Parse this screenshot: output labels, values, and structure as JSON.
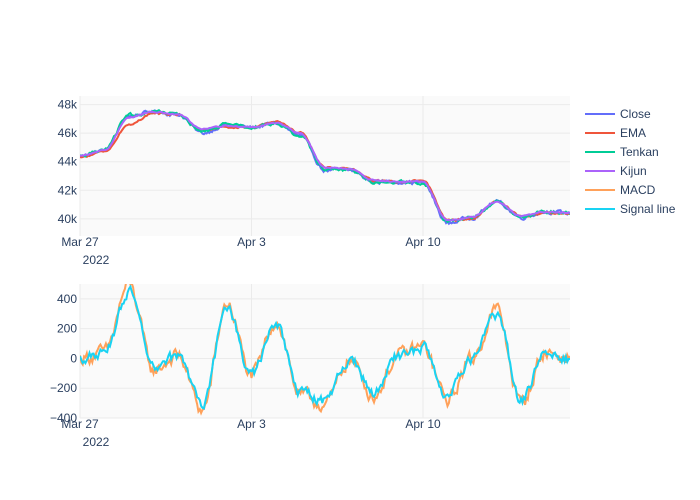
{
  "chart_data": [
    {
      "type": "line",
      "title": "",
      "xlabel": "",
      "ylabel": "",
      "x_range": [
        "2022-03-27",
        "2022-04-16"
      ],
      "ylim": [
        38800,
        48600
      ],
      "x_ticks": [
        {
          "date": "2022-03-27",
          "label": "Mar 27",
          "sublabel": "2022"
        },
        {
          "date": "2022-04-03",
          "label": "Apr 3",
          "sublabel": ""
        },
        {
          "date": "2022-04-10",
          "label": "Apr 10",
          "sublabel": ""
        }
      ],
      "y_ticks": [
        {
          "value": 40000,
          "label": "40k"
        },
        {
          "value": 42000,
          "label": "42k"
        },
        {
          "value": 44000,
          "label": "44k"
        },
        {
          "value": 46000,
          "label": "46k"
        },
        {
          "value": 48000,
          "label": "48k"
        }
      ],
      "grid": true,
      "x": [
        "2022-03-27",
        "2022-03-28",
        "2022-03-29",
        "2022-03-30",
        "2022-03-31",
        "2022-04-01",
        "2022-04-02",
        "2022-04-03",
        "2022-04-04",
        "2022-04-05",
        "2022-04-06",
        "2022-04-07",
        "2022-04-08",
        "2022-04-09",
        "2022-04-10",
        "2022-04-11",
        "2022-04-12",
        "2022-04-13",
        "2022-04-14",
        "2022-04-15",
        "2022-04-16"
      ],
      "series": [
        {
          "name": "Close",
          "color": "#636efa",
          "values": [
            44400,
            44800,
            47200,
            47500,
            47300,
            46000,
            46600,
            46400,
            46700,
            45800,
            43400,
            43400,
            42600,
            42600,
            42500,
            39700,
            40100,
            41200,
            40100,
            40500,
            40400
          ]
        },
        {
          "name": "EMA",
          "color": "#ef553b",
          "values": [
            44300,
            44700,
            46600,
            47400,
            47300,
            46200,
            46400,
            46400,
            46800,
            46000,
            43600,
            43500,
            42700,
            42600,
            42700,
            39900,
            40000,
            41200,
            40200,
            40400,
            40400
          ]
        },
        {
          "name": "Tenkan",
          "color": "#00cc96",
          "values": [
            44400,
            44800,
            47300,
            47500,
            47300,
            46100,
            46600,
            46400,
            46700,
            45800,
            43500,
            43400,
            42600,
            42600,
            42500,
            39800,
            40100,
            41200,
            40100,
            40500,
            40400
          ]
        },
        {
          "name": "Kijun",
          "color": "#ab63fa",
          "values": [
            44400,
            44800,
            47100,
            47500,
            47300,
            46300,
            46500,
            46400,
            46700,
            46000,
            43600,
            43500,
            42700,
            42600,
            42600,
            39900,
            40100,
            41200,
            40200,
            40500,
            40400
          ]
        }
      ]
    },
    {
      "type": "line",
      "title": "",
      "xlabel": "",
      "ylabel": "",
      "x_range": [
        "2022-03-27",
        "2022-04-16"
      ],
      "ylim": [
        -400,
        500
      ],
      "x_ticks": [
        {
          "date": "2022-03-27",
          "label": "Mar 27",
          "sublabel": "2022"
        },
        {
          "date": "2022-04-03",
          "label": "Apr 3",
          "sublabel": ""
        },
        {
          "date": "2022-04-10",
          "label": "Apr 10",
          "sublabel": ""
        }
      ],
      "y_ticks": [
        {
          "value": -400,
          "label": "−400"
        },
        {
          "value": -200,
          "label": "−200"
        },
        {
          "value": 0,
          "label": "0"
        },
        {
          "value": 200,
          "label": "200"
        },
        {
          "value": 400,
          "label": "400"
        }
      ],
      "grid": true,
      "x": [
        "2022-03-27",
        "2022-03-28",
        "2022-03-29",
        "2022-03-30",
        "2022-03-31",
        "2022-04-01",
        "2022-04-02",
        "2022-04-03",
        "2022-04-04",
        "2022-04-05",
        "2022-04-06",
        "2022-04-07",
        "2022-04-08",
        "2022-04-09",
        "2022-04-10",
        "2022-04-11",
        "2022-04-12",
        "2022-04-13",
        "2022-04-14",
        "2022-04-15",
        "2022-04-16"
      ],
      "series": [
        {
          "name": "MACD",
          "color": "#ffa15a",
          "values": [
            0,
            40,
            500,
            -80,
            20,
            -350,
            370,
            -120,
            250,
            -250,
            -310,
            -10,
            -250,
            20,
            80,
            -280,
            0,
            330,
            -300,
            40,
            0
          ]
        },
        {
          "name": "Signal line",
          "color": "#19d3f3",
          "values": [
            0,
            30,
            450,
            -70,
            15,
            -300,
            330,
            -110,
            220,
            -230,
            -290,
            -5,
            -230,
            15,
            70,
            -250,
            0,
            290,
            -280,
            35,
            0
          ]
        }
      ]
    }
  ],
  "legend": {
    "placement": "right",
    "items": [
      {
        "name": "Close",
        "color": "#636efa"
      },
      {
        "name": "EMA",
        "color": "#ef553b"
      },
      {
        "name": "Tenkan",
        "color": "#00cc96"
      },
      {
        "name": "Kijun",
        "color": "#ab63fa"
      },
      {
        "name": "MACD",
        "color": "#ffa15a"
      },
      {
        "name": "Signal line",
        "color": "#19d3f3"
      }
    ]
  }
}
